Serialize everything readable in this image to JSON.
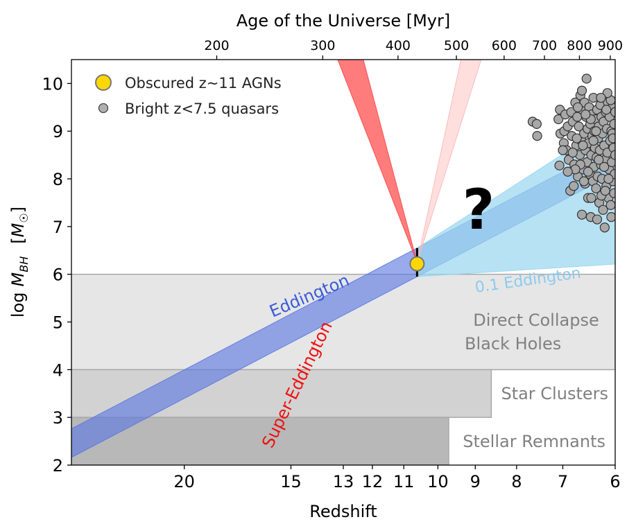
{
  "chart_data": {
    "type": "scatter",
    "x_axis": {
      "label": "Redshift",
      "scale": "log(1+z)",
      "range": [
        27,
        6
      ],
      "ticks": [
        20,
        15,
        13,
        12,
        11,
        10,
        9,
        8,
        7,
        6
      ],
      "tick_labels": [
        "20",
        "15",
        "13",
        "12",
        "11",
        "10",
        "9",
        "8",
        "7",
        "6"
      ]
    },
    "top_axis": {
      "label": "Age of the Universe [Myr]",
      "ticks_myr": [
        200,
        300,
        400,
        500,
        600,
        700,
        800,
        900
      ],
      "tick_labels": [
        "200",
        "300",
        "400",
        "500",
        "600",
        "700",
        "800",
        "900"
      ]
    },
    "y_axis": {
      "label_main": "log",
      "label_sym": "M",
      "label_sub": "BH",
      "label_unit_open": "[",
      "label_unit_sym": "M",
      "label_unit_sub": "☉",
      "label_unit_close": "]",
      "range": [
        2,
        10.5
      ],
      "ticks": [
        2,
        3,
        4,
        5,
        6,
        7,
        8,
        9,
        10
      ],
      "tick_labels": [
        "2",
        "3",
        "4",
        "5",
        "6",
        "7",
        "8",
        "9",
        "10"
      ]
    },
    "legend": {
      "placement": "top-left",
      "entries": [
        {
          "label": "Obscured z~11 AGNs",
          "marker": "large-gold-circle"
        },
        {
          "label": "Bright z<7.5 quasars",
          "marker": "small-grey-circle"
        }
      ]
    },
    "question_mark": "?",
    "agn_point": {
      "z": 10.6,
      "logM": 6.22,
      "logM_low": 5.95,
      "logM_high": 6.55
    },
    "regions": [
      {
        "label_lines": [
          "Stellar Remnants"
        ],
        "z_from": 27,
        "z_to": 9.7,
        "logM": [
          2,
          3
        ],
        "color": "#b8b8b8"
      },
      {
        "label_lines": [
          "Star Clusters"
        ],
        "z_from": 27,
        "z_to": 8.6,
        "logM": [
          3,
          4
        ],
        "color": "#d2d2d2"
      },
      {
        "label_lines": [
          "Direct Collapse",
          "Black Holes"
        ],
        "z_from": 27,
        "z_to": 6,
        "logM": [
          4,
          6
        ],
        "color": "#e6e6e6"
      }
    ],
    "growth_tracks": [
      {
        "label": "Eddington",
        "color": "#5a77e0",
        "text_color": "#3a5bd8"
      },
      {
        "label": "0.1 Eddington",
        "color": "#9ad7ef",
        "text_color": "#8ccbee"
      },
      {
        "label": "Super-Eddington",
        "color": "#ff5f5f",
        "text_color": "#ee1111"
      }
    ],
    "quasars": [
      [
        7.64,
        9.2
      ],
      [
        7.55,
        9.15
      ],
      [
        7.54,
        8.9
      ],
      [
        7.09,
        9.25
      ],
      [
        7.05,
        8.95
      ],
      [
        7.06,
        9.45
      ],
      [
        7.07,
        8.28
      ],
      [
        6.98,
        8.75
      ],
      [
        6.97,
        9.0
      ],
      [
        6.95,
        9.35
      ],
      [
        6.92,
        8.6
      ],
      [
        6.9,
        9.1
      ],
      [
        6.88,
        8.4
      ],
      [
        6.85,
        7.75
      ],
      [
        6.83,
        9.4
      ],
      [
        6.82,
        8.9
      ],
      [
        6.8,
        9.2
      ],
      [
        6.78,
        7.85
      ],
      [
        6.77,
        8.3
      ],
      [
        6.75,
        9.6
      ],
      [
        6.73,
        8.7
      ],
      [
        6.71,
        9.3
      ],
      [
        6.7,
        8.05
      ],
      [
        6.68,
        9.1
      ],
      [
        6.66,
        8.5
      ],
      [
        6.65,
        9.75
      ],
      [
        6.63,
        8.8
      ],
      [
        6.62,
        7.25
      ],
      [
        6.61,
        9.45
      ],
      [
        6.6,
        8.2
      ],
      [
        6.58,
        8.95
      ],
      [
        6.57,
        9.6
      ],
      [
        6.56,
        7.9
      ],
      [
        6.55,
        8.6
      ],
      [
        6.54,
        9.3
      ],
      [
        6.53,
        10.1
      ],
      [
        6.52,
        8.35
      ],
      [
        6.51,
        9.05
      ],
      [
        6.5,
        7.6
      ],
      [
        6.49,
        8.75
      ],
      [
        6.48,
        9.5
      ],
      [
        6.47,
        8.1
      ],
      [
        6.46,
        9.15
      ],
      [
        6.45,
        7.2
      ],
      [
        6.44,
        8.5
      ],
      [
        6.43,
        9.35
      ],
      [
        6.42,
        8.9
      ],
      [
        6.41,
        7.95
      ],
      [
        6.4,
        9.7
      ],
      [
        6.39,
        8.25
      ],
      [
        6.38,
        9.0
      ],
      [
        6.37,
        8.65
      ],
      [
        6.36,
        9.25
      ],
      [
        6.35,
        7.8
      ],
      [
        6.34,
        8.45
      ],
      [
        6.33,
        9.45
      ],
      [
        6.32,
        8.05
      ],
      [
        6.31,
        8.85
      ],
      [
        6.3,
        9.1
      ],
      [
        6.29,
        7.5
      ],
      [
        6.28,
        8.6
      ],
      [
        6.27,
        9.55
      ],
      [
        6.26,
        8.3
      ],
      [
        6.25,
        9.3
      ],
      [
        6.24,
        8.0
      ],
      [
        6.23,
        8.95
      ],
      [
        6.22,
        7.35
      ],
      [
        6.21,
        9.2
      ],
      [
        6.2,
        8.7
      ],
      [
        6.19,
        6.98
      ],
      [
        6.18,
        8.4
      ],
      [
        6.17,
        9.4
      ],
      [
        6.16,
        7.85
      ],
      [
        6.15,
        9.05
      ],
      [
        6.14,
        8.55
      ],
      [
        6.13,
        9.6
      ],
      [
        6.12,
        7.6
      ],
      [
        6.11,
        8.2
      ],
      [
        6.1,
        9.3
      ],
      [
        6.09,
        8.8
      ],
      [
        6.08,
        7.45
      ],
      [
        6.07,
        9.0
      ],
      [
        6.06,
        8.35
      ],
      [
        6.05,
        9.5
      ],
      [
        6.04,
        7.95
      ],
      [
        6.03,
        8.65
      ],
      [
        6.02,
        9.15
      ],
      [
        6.01,
        8.1
      ],
      [
        6.0,
        9.4
      ],
      [
        6.0,
        8.5
      ],
      [
        6.02,
        7.7
      ],
      [
        6.05,
        8.95
      ],
      [
        6.08,
        9.65
      ],
      [
        6.12,
        8.0
      ],
      [
        6.16,
        9.45
      ],
      [
        6.2,
        8.25
      ],
      [
        6.25,
        7.65
      ],
      [
        6.3,
        8.4
      ],
      [
        6.35,
        9.0
      ],
      [
        6.4,
        8.8
      ],
      [
        6.45,
        9.25
      ],
      [
        6.5,
        8.15
      ],
      [
        6.55,
        9.35
      ],
      [
        6.6,
        8.7
      ],
      [
        6.65,
        8.3
      ],
      [
        6.7,
        9.5
      ],
      [
        6.75,
        8.2
      ],
      [
        6.8,
        8.55
      ],
      [
        6.9,
        8.15
      ],
      [
        7.0,
        8.6
      ],
      [
        6.62,
        9.85
      ],
      [
        6.33,
        7.15
      ],
      [
        6.18,
        7.75
      ],
      [
        6.07,
        7.2
      ],
      [
        6.04,
        8.85
      ],
      [
        6.14,
        9.8
      ],
      [
        6.26,
        9.7
      ],
      [
        6.44,
        7.6
      ],
      [
        6.58,
        7.95
      ],
      [
        6.72,
        8.85
      ]
    ]
  }
}
